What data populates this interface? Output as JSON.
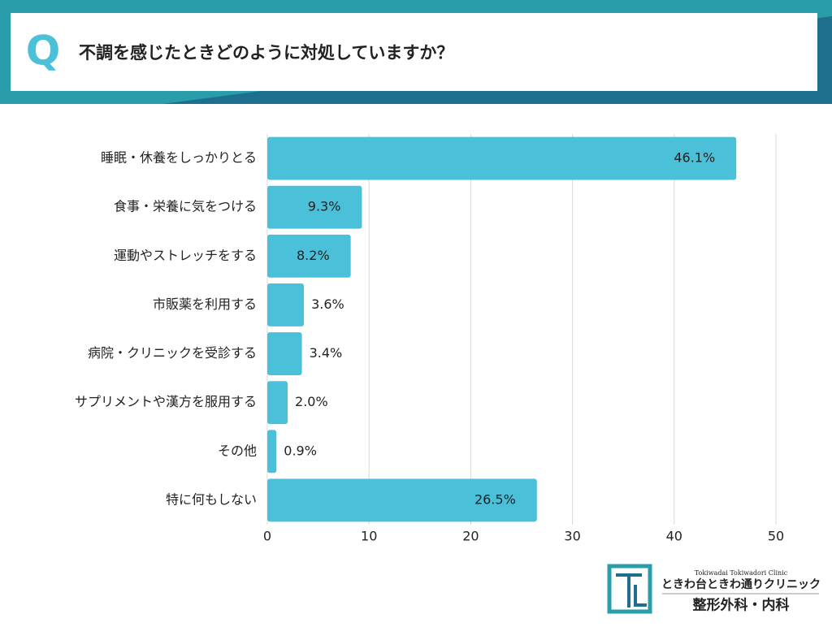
{
  "header": {
    "badge": "Q"
  },
  "chart_data": {
    "type": "bar",
    "orientation": "horizontal",
    "title": "不調を感じたときどのように対処していますか？",
    "categories": [
      "睡眠・休養をしっかりとる",
      "食事・栄養に気をつける",
      "運動やストレッチをする",
      "市販薬を利用する",
      "病院・クリニックを受診する",
      "サプリメントや漢方を服用する",
      "その他",
      "特に何もしない"
    ],
    "values": [
      46.1,
      9.3,
      8.2,
      3.6,
      3.4,
      2.0,
      0.9,
      26.5
    ],
    "value_labels": [
      "46.1%",
      "9.3%",
      "8.2%",
      "3.6%",
      "3.4%",
      "2.0%",
      "0.9%",
      "26.5%"
    ],
    "color": "#4bc0d9",
    "xlim": [
      0,
      50
    ],
    "xticks": [
      0,
      10,
      20,
      30,
      40,
      50
    ],
    "grid": true
  },
  "logo": {
    "english": "Tokiwadai Tokiwadori Clinic",
    "name": "ときわ台ときわ通りクリニック",
    "departments": "整形外科・内科"
  }
}
